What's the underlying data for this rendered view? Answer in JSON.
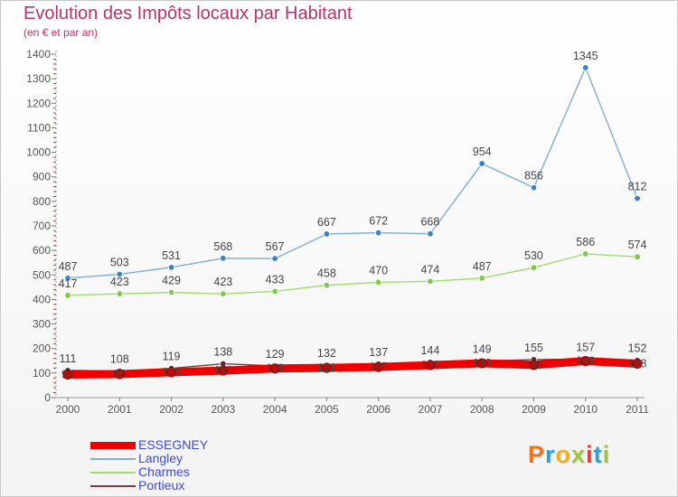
{
  "header": {
    "title": "Evolution des Impôts locaux par Habitant",
    "subtitle": "(en € et par an)"
  },
  "colors": {
    "accent_title": "#b5346b",
    "legend_text": "#3a4bd6",
    "axis_text": "#555555"
  },
  "logo": {
    "letters": [
      "P",
      "r",
      "o",
      "x",
      "i",
      "t",
      "i"
    ],
    "colors": [
      "#e8741c",
      "#2aa4d6",
      "#f2b01e",
      "#9dc63b",
      "#e23d3d",
      "#2aa4d6",
      "#9dc63b"
    ]
  },
  "chart_data": {
    "type": "line",
    "title": "Evolution des Impôts locaux par Habitant",
    "subtitle": "(en € et par an)",
    "ylim": [
      0,
      1400
    ],
    "yticks": [
      0,
      100,
      200,
      300,
      400,
      500,
      600,
      700,
      800,
      900,
      1000,
      1100,
      1200,
      1300,
      1400
    ],
    "x": [
      2000,
      2001,
      2002,
      2003,
      2004,
      2005,
      2006,
      2007,
      2008,
      2009,
      2010,
      2011
    ],
    "grid": false,
    "legend_position": "bottom-left",
    "series": [
      {
        "name": "ESSEGNEY",
        "color": "#ee0000",
        "values": [
          94,
          96,
          103,
          110,
          119,
          121,
          125,
          132,
          140,
          133,
          149,
          138
        ]
      },
      {
        "name": "Langley",
        "color": "#7eaed6",
        "values": [
          487,
          503,
          531,
          568,
          567,
          667,
          672,
          668,
          954,
          856,
          1345,
          812
        ]
      },
      {
        "name": "Charmes",
        "color": "#9fdb6e",
        "values": [
          417,
          423,
          429,
          423,
          433,
          458,
          470,
          474,
          487,
          530,
          586,
          574
        ]
      },
      {
        "name": "Portieux",
        "color": "#7a3d45",
        "values": [
          111,
          108,
          119,
          138,
          129,
          132,
          137,
          144,
          149,
          155,
          157,
          152
        ]
      }
    ]
  }
}
